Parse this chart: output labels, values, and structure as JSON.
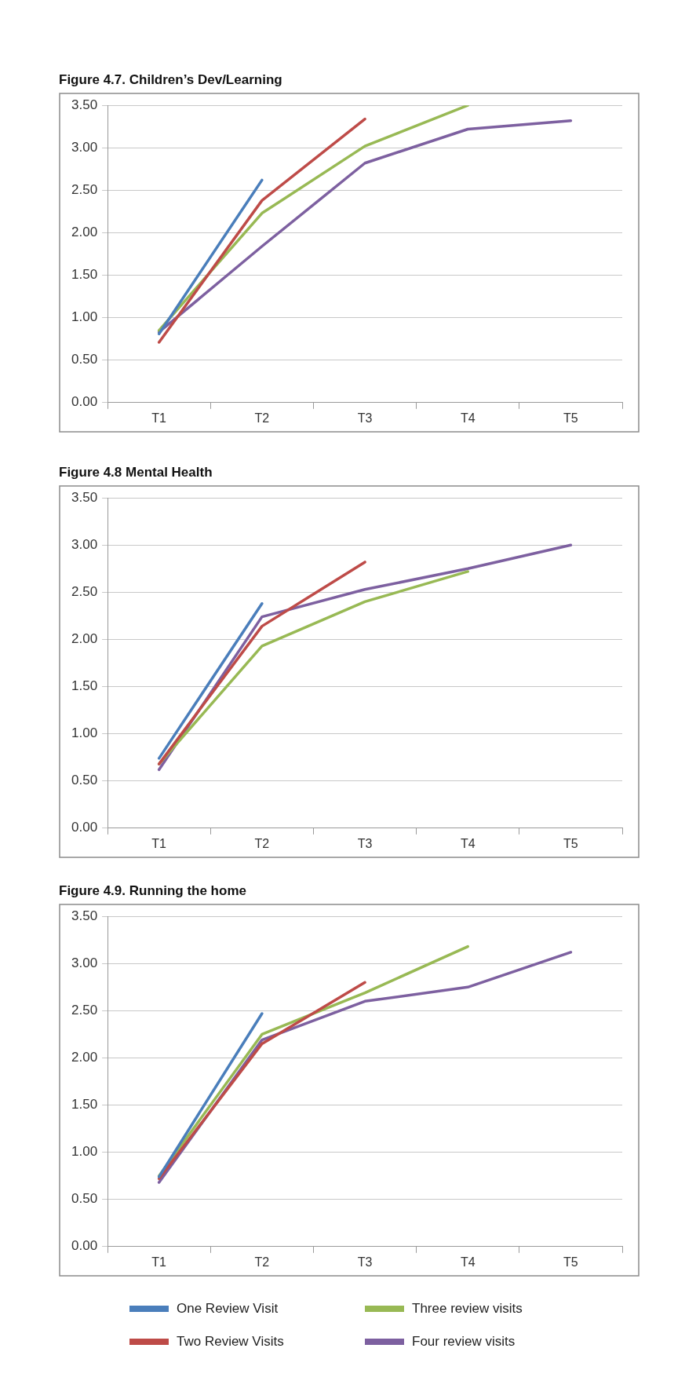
{
  "chart_data": [
    {
      "type": "line",
      "title": "Figure 4.7. Children’s Dev/Learning",
      "categories": [
        "T1",
        "T2",
        "T3",
        "T4",
        "T5"
      ],
      "series": [
        {
          "color": "#4a7ebb",
          "values": [
            0.81,
            2.62,
            null,
            null,
            null
          ]
        },
        {
          "color": "#be4b48",
          "values": [
            0.71,
            2.38,
            3.34,
            null,
            null
          ]
        },
        {
          "color": "#98b954",
          "values": [
            0.85,
            2.23,
            3.02,
            3.5,
            null
          ]
        },
        {
          "color": "#7d60a0",
          "values": [
            0.83,
            1.84,
            2.82,
            3.22,
            3.32
          ]
        }
      ],
      "ylim": [
        0,
        3.5
      ],
      "yticks": [
        {
          "value": 0,
          "label": "0.00"
        },
        {
          "value": 0.5,
          "label": "0.50"
        },
        {
          "value": 1,
          "label": "1.00"
        },
        {
          "value": 1.5,
          "label": "1.50"
        },
        {
          "value": 2,
          "label": "2.00"
        },
        {
          "value": 2.5,
          "label": "2.50"
        },
        {
          "value": 3,
          "label": "3.00"
        },
        {
          "value": 3.5,
          "label": "3.50"
        }
      ],
      "grid": "y",
      "marker": "none",
      "line_style": "solid"
    },
    {
      "type": "line",
      "title": "Figure 4.8 Mental Health",
      "categories": [
        "T1",
        "T2",
        "T3",
        "T4",
        "T5"
      ],
      "series": [
        {
          "color": "#4a7ebb",
          "values": [
            0.74,
            2.38,
            null,
            null,
            null
          ]
        },
        {
          "color": "#be4b48",
          "values": [
            0.68,
            2.14,
            2.82,
            null,
            null
          ]
        },
        {
          "color": "#98b954",
          "values": [
            0.68,
            1.93,
            2.4,
            2.72,
            null
          ]
        },
        {
          "color": "#7d60a0",
          "values": [
            0.62,
            2.24,
            2.53,
            2.75,
            3.0
          ]
        }
      ],
      "ylim": [
        0,
        3.5
      ],
      "yticks": [
        {
          "value": 0,
          "label": "0.00"
        },
        {
          "value": 0.5,
          "label": "0.50"
        },
        {
          "value": 1,
          "label": "1.00"
        },
        {
          "value": 1.5,
          "label": "1.50"
        },
        {
          "value": 2,
          "label": "2.00"
        },
        {
          "value": 2.5,
          "label": "2.50"
        },
        {
          "value": 3,
          "label": "3.00"
        },
        {
          "value": 3.5,
          "label": "3.50"
        }
      ],
      "grid": "y",
      "marker": "none",
      "line_style": "solid"
    },
    {
      "type": "line",
      "title": "Figure 4.9. Running the home",
      "categories": [
        "T1",
        "T2",
        "T3",
        "T4",
        "T5"
      ],
      "series": [
        {
          "name": "One Review Visit",
          "color": "#4a7ebb",
          "values": [
            0.74,
            2.47,
            null,
            null,
            null
          ]
        },
        {
          "name": "Two Review Visits",
          "color": "#be4b48",
          "values": [
            0.72,
            2.15,
            2.8,
            null,
            null
          ]
        },
        {
          "name": "Three review visits",
          "color": "#98b954",
          "values": [
            0.75,
            2.25,
            2.69,
            3.18,
            null
          ]
        },
        {
          "name": "Four review visits",
          "color": "#7d60a0",
          "values": [
            0.68,
            2.19,
            2.6,
            2.75,
            3.12
          ]
        }
      ],
      "ylim": [
        0,
        3.5
      ],
      "yticks": [
        {
          "value": 0,
          "label": "0.00"
        },
        {
          "value": 0.5,
          "label": "0.50"
        },
        {
          "value": 1,
          "label": "1.00"
        },
        {
          "value": 1.5,
          "label": "1.50"
        },
        {
          "value": 2,
          "label": "2.00"
        },
        {
          "value": 2.5,
          "label": "2.50"
        },
        {
          "value": 3,
          "label": "3.00"
        },
        {
          "value": 3.5,
          "label": "3.50"
        }
      ],
      "grid": "y",
      "legend": "bottom",
      "marker": "none",
      "line_style": "solid"
    }
  ]
}
